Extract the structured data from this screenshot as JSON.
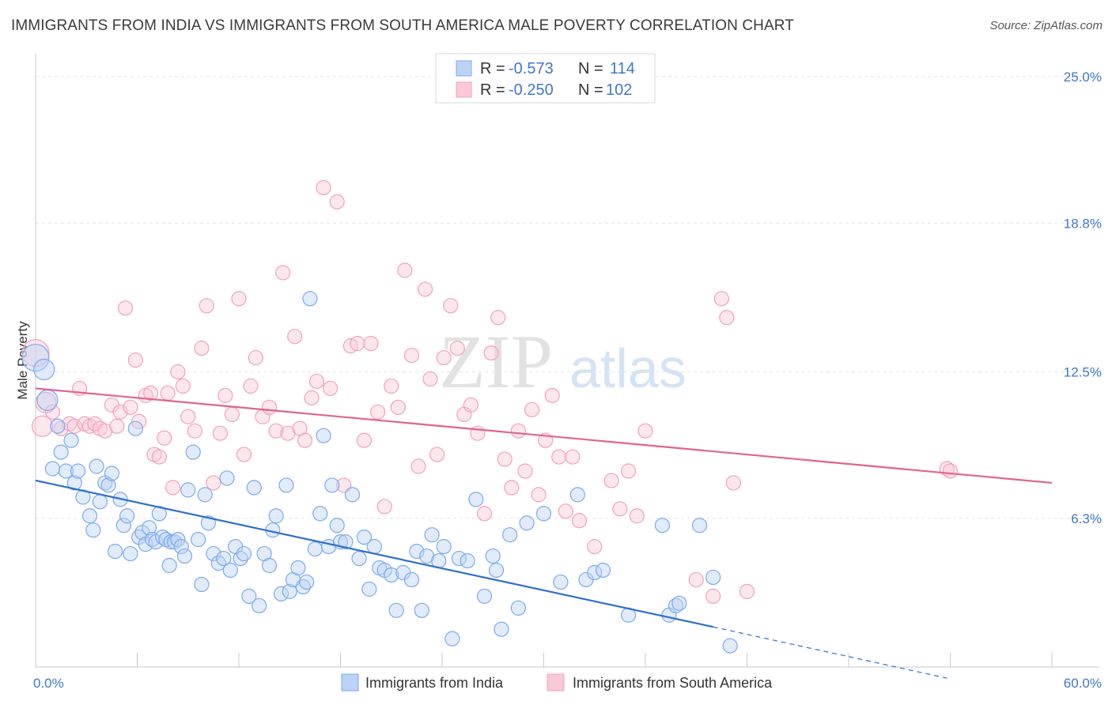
{
  "title": "IMMIGRANTS FROM INDIA VS IMMIGRANTS FROM SOUTH AMERICA MALE POVERTY CORRELATION CHART",
  "source": "Source: ZipAtlas.com",
  "watermark": {
    "zip": "ZIP",
    "atlas": "atlas"
  },
  "colors": {
    "india": "#7aaaf0",
    "india_line": "#2e6fcc",
    "sa": "#f4a0bb",
    "sa_line": "#e0638e",
    "tick": "#3f78c8"
  },
  "chart_data": {
    "type": "scatter",
    "xlabel": "",
    "ylabel": "Male Poverty",
    "xlim": [
      0,
      60
    ],
    "ylim": [
      0,
      25
    ],
    "x_tick_labels": [
      "0.0%",
      "60.0%"
    ],
    "y_ticks": [
      {
        "value": 6.3,
        "label": "6.3%"
      },
      {
        "value": 12.5,
        "label": "12.5%"
      },
      {
        "value": 18.8,
        "label": "18.8%"
      },
      {
        "value": 25.0,
        "label": "25.0%"
      }
    ],
    "grid": true,
    "legend_position": "top-center",
    "legend": [
      {
        "r_label": "R =",
        "r_value": "-0.573",
        "n_label": "N =",
        "n_value": "114"
      },
      {
        "r_label": "R =",
        "r_value": "-0.250",
        "n_label": "N =",
        "n_value": "102"
      }
    ],
    "series": [
      {
        "name": "Immigrants from India",
        "trend": {
          "x0": 0,
          "y0": 7.9,
          "x1": 40,
          "y1": 1.7,
          "dash_x1": 54,
          "dash_y1": -0.5
        },
        "points": [
          [
            0.0,
            13.1
          ],
          [
            0.5,
            12.6
          ],
          [
            0.7,
            11.3
          ],
          [
            1.0,
            8.4
          ],
          [
            1.3,
            10.2
          ],
          [
            1.5,
            9.1
          ],
          [
            1.8,
            8.3
          ],
          [
            2.1,
            9.6
          ],
          [
            2.3,
            7.8
          ],
          [
            2.5,
            8.3
          ],
          [
            2.8,
            7.2
          ],
          [
            3.2,
            6.4
          ],
          [
            3.4,
            5.8
          ],
          [
            3.6,
            8.5
          ],
          [
            3.8,
            7.0
          ],
          [
            4.1,
            7.8
          ],
          [
            4.3,
            7.7
          ],
          [
            4.5,
            8.2
          ],
          [
            4.7,
            4.9
          ],
          [
            5.0,
            7.1
          ],
          [
            5.2,
            6.0
          ],
          [
            5.4,
            6.4
          ],
          [
            5.6,
            4.8
          ],
          [
            5.9,
            10.1
          ],
          [
            6.1,
            5.5
          ],
          [
            6.3,
            5.7
          ],
          [
            6.5,
            5.2
          ],
          [
            6.7,
            5.9
          ],
          [
            6.9,
            5.4
          ],
          [
            7.1,
            5.3
          ],
          [
            7.3,
            6.5
          ],
          [
            7.5,
            5.5
          ],
          [
            7.7,
            5.4
          ],
          [
            7.9,
            4.3
          ],
          [
            8.0,
            5.3
          ],
          [
            8.2,
            5.3
          ],
          [
            8.4,
            5.4
          ],
          [
            8.6,
            5.1
          ],
          [
            8.8,
            4.7
          ],
          [
            9.0,
            7.5
          ],
          [
            9.3,
            9.1
          ],
          [
            9.6,
            5.4
          ],
          [
            9.8,
            3.5
          ],
          [
            10.0,
            7.3
          ],
          [
            10.2,
            6.1
          ],
          [
            10.5,
            4.8
          ],
          [
            10.8,
            4.4
          ],
          [
            11.1,
            4.6
          ],
          [
            11.3,
            8.0
          ],
          [
            11.5,
            4.1
          ],
          [
            11.8,
            5.1
          ],
          [
            12.1,
            4.6
          ],
          [
            12.3,
            4.8
          ],
          [
            12.6,
            3.0
          ],
          [
            12.9,
            7.6
          ],
          [
            13.2,
            2.6
          ],
          [
            13.5,
            4.8
          ],
          [
            13.8,
            4.3
          ],
          [
            14.0,
            5.8
          ],
          [
            14.2,
            6.4
          ],
          [
            14.5,
            3.1
          ],
          [
            14.8,
            7.7
          ],
          [
            15.0,
            3.2
          ],
          [
            15.2,
            3.7
          ],
          [
            15.5,
            4.2
          ],
          [
            15.8,
            3.4
          ],
          [
            16.0,
            3.6
          ],
          [
            16.2,
            15.6
          ],
          [
            16.5,
            5.0
          ],
          [
            16.8,
            6.5
          ],
          [
            17.0,
            9.8
          ],
          [
            17.3,
            5.1
          ],
          [
            17.5,
            7.7
          ],
          [
            17.8,
            6.0
          ],
          [
            18.0,
            5.3
          ],
          [
            18.3,
            5.3
          ],
          [
            18.7,
            7.3
          ],
          [
            19.1,
            4.6
          ],
          [
            19.4,
            5.5
          ],
          [
            19.7,
            3.3
          ],
          [
            20.0,
            5.1
          ],
          [
            20.3,
            4.2
          ],
          [
            20.6,
            4.1
          ],
          [
            21.0,
            3.9
          ],
          [
            21.3,
            2.4
          ],
          [
            21.7,
            4.0
          ],
          [
            22.2,
            3.7
          ],
          [
            22.5,
            4.9
          ],
          [
            22.8,
            2.4
          ],
          [
            23.1,
            4.7
          ],
          [
            23.4,
            5.6
          ],
          [
            23.8,
            4.5
          ],
          [
            24.1,
            5.1
          ],
          [
            24.6,
            1.2
          ],
          [
            25.0,
            4.6
          ],
          [
            25.5,
            4.5
          ],
          [
            26.0,
            7.1
          ],
          [
            26.5,
            3.0
          ],
          [
            27.0,
            4.7
          ],
          [
            27.2,
            4.1
          ],
          [
            27.5,
            1.6
          ],
          [
            28.0,
            5.6
          ],
          [
            28.5,
            2.5
          ],
          [
            29.0,
            6.1
          ],
          [
            30.0,
            6.5
          ],
          [
            31.0,
            3.6
          ],
          [
            32.0,
            7.3
          ],
          [
            32.5,
            3.7
          ],
          [
            33.0,
            4.0
          ],
          [
            33.5,
            4.1
          ],
          [
            35.0,
            2.2
          ],
          [
            37.0,
            6.0
          ],
          [
            37.4,
            2.2
          ],
          [
            37.8,
            2.6
          ],
          [
            38.0,
            2.7
          ],
          [
            39.2,
            6.0
          ],
          [
            40.0,
            3.8
          ],
          [
            41.0,
            0.9
          ]
        ]
      },
      {
        "name": "Immigrants from South America",
        "trend": {
          "x0": 0,
          "y0": 11.8,
          "x1": 60,
          "y1": 7.8
        },
        "points": [
          [
            0.0,
            13.3
          ],
          [
            0.4,
            10.2
          ],
          [
            0.6,
            11.2
          ],
          [
            1.0,
            10.8
          ],
          [
            1.5,
            10.1
          ],
          [
            2.0,
            10.3
          ],
          [
            2.3,
            10.2
          ],
          [
            2.6,
            11.8
          ],
          [
            2.9,
            10.3
          ],
          [
            3.2,
            10.2
          ],
          [
            3.5,
            10.3
          ],
          [
            3.8,
            10.1
          ],
          [
            4.1,
            10.0
          ],
          [
            4.5,
            11.1
          ],
          [
            4.8,
            10.2
          ],
          [
            5.0,
            10.8
          ],
          [
            5.3,
            15.2
          ],
          [
            5.6,
            11.0
          ],
          [
            5.9,
            13.0
          ],
          [
            6.1,
            10.4
          ],
          [
            6.5,
            11.5
          ],
          [
            6.8,
            11.6
          ],
          [
            7.0,
            9.0
          ],
          [
            7.3,
            8.9
          ],
          [
            7.6,
            9.7
          ],
          [
            7.8,
            11.6
          ],
          [
            8.1,
            7.6
          ],
          [
            8.4,
            12.5
          ],
          [
            8.7,
            11.9
          ],
          [
            9.0,
            10.6
          ],
          [
            9.4,
            10.0
          ],
          [
            9.8,
            13.5
          ],
          [
            10.1,
            15.3
          ],
          [
            10.5,
            7.8
          ],
          [
            10.9,
            9.9
          ],
          [
            11.2,
            11.5
          ],
          [
            11.6,
            10.7
          ],
          [
            12.0,
            15.6
          ],
          [
            12.3,
            9.0
          ],
          [
            12.7,
            11.9
          ],
          [
            13.0,
            13.1
          ],
          [
            13.4,
            10.6
          ],
          [
            13.8,
            11.0
          ],
          [
            14.2,
            10.0
          ],
          [
            14.6,
            16.7
          ],
          [
            14.9,
            9.9
          ],
          [
            15.3,
            14.0
          ],
          [
            15.6,
            10.1
          ],
          [
            15.9,
            9.6
          ],
          [
            16.3,
            11.4
          ],
          [
            16.6,
            12.1
          ],
          [
            17.0,
            20.3
          ],
          [
            17.4,
            11.8
          ],
          [
            17.8,
            19.7
          ],
          [
            18.2,
            7.7
          ],
          [
            18.6,
            13.6
          ],
          [
            19.0,
            13.7
          ],
          [
            19.4,
            9.6
          ],
          [
            19.8,
            13.7
          ],
          [
            20.2,
            10.8
          ],
          [
            20.6,
            6.8
          ],
          [
            21.0,
            11.9
          ],
          [
            21.4,
            11.0
          ],
          [
            21.8,
            16.8
          ],
          [
            22.2,
            13.2
          ],
          [
            22.6,
            8.5
          ],
          [
            23.0,
            16.0
          ],
          [
            23.3,
            12.2
          ],
          [
            23.7,
            9.0
          ],
          [
            24.1,
            13.1
          ],
          [
            24.5,
            15.3
          ],
          [
            24.9,
            13.5
          ],
          [
            25.3,
            10.7
          ],
          [
            25.7,
            11.1
          ],
          [
            26.1,
            9.9
          ],
          [
            26.5,
            6.5
          ],
          [
            26.9,
            13.3
          ],
          [
            27.3,
            14.8
          ],
          [
            27.7,
            8.8
          ],
          [
            28.1,
            7.6
          ],
          [
            28.5,
            10.0
          ],
          [
            28.9,
            8.3
          ],
          [
            29.3,
            10.9
          ],
          [
            29.7,
            7.3
          ],
          [
            30.1,
            9.6
          ],
          [
            30.5,
            11.5
          ],
          [
            30.9,
            8.9
          ],
          [
            31.3,
            6.6
          ],
          [
            31.7,
            8.9
          ],
          [
            32.1,
            6.2
          ],
          [
            33.0,
            5.1
          ],
          [
            34.0,
            7.9
          ],
          [
            34.5,
            6.7
          ],
          [
            35.0,
            8.3
          ],
          [
            35.5,
            6.4
          ],
          [
            36.0,
            10.0
          ],
          [
            39.0,
            3.7
          ],
          [
            40.0,
            3.0
          ],
          [
            40.5,
            15.6
          ],
          [
            40.8,
            14.8
          ],
          [
            41.2,
            7.8
          ],
          [
            42.0,
            3.2
          ],
          [
            53.8,
            8.4
          ],
          [
            54.0,
            8.3
          ]
        ]
      }
    ]
  },
  "bottom_legend": [
    "Immigrants from India",
    "Immigrants from South America"
  ]
}
